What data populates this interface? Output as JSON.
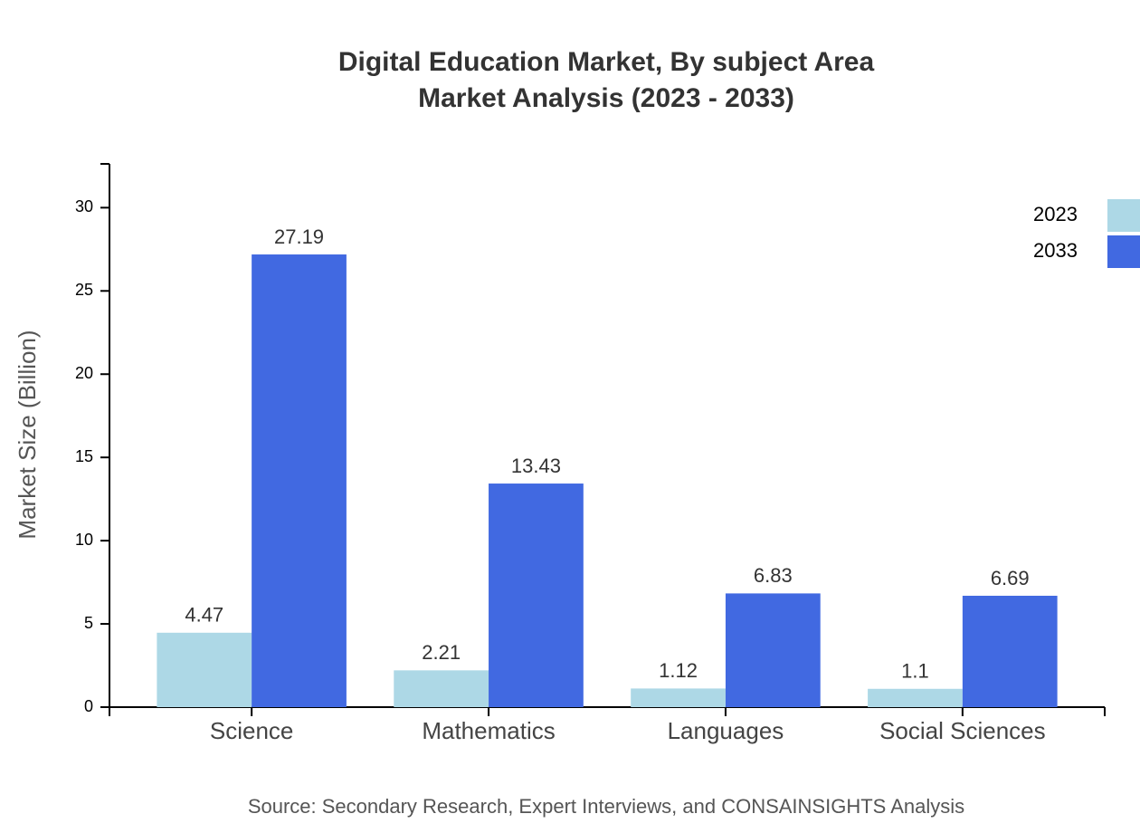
{
  "chart_data": {
    "type": "bar",
    "title": "Digital Education Market, By subject Area",
    "subtitle": "Market Analysis (2023 - 2033)",
    "y_label": "Market Size (Billion)",
    "source": "Source: Secondary Research, Expert Interviews, and CONSAINSIGHTS Analysis",
    "categories": [
      "Science",
      "Mathematics",
      "Languages",
      "Social Sciences"
    ],
    "series": [
      {
        "name": "2023",
        "color": "#add8e6",
        "values": [
          4.47,
          2.21,
          1.12,
          1.1
        ]
      },
      {
        "name": "2033",
        "color": "#4169e1",
        "values": [
          27.19,
          13.43,
          6.83,
          6.69
        ]
      }
    ],
    "ylim": [
      0,
      32.63
    ],
    "yticks": [
      0,
      5,
      10,
      15,
      20,
      25,
      30
    ],
    "legend": "top-right",
    "grid": false
  }
}
